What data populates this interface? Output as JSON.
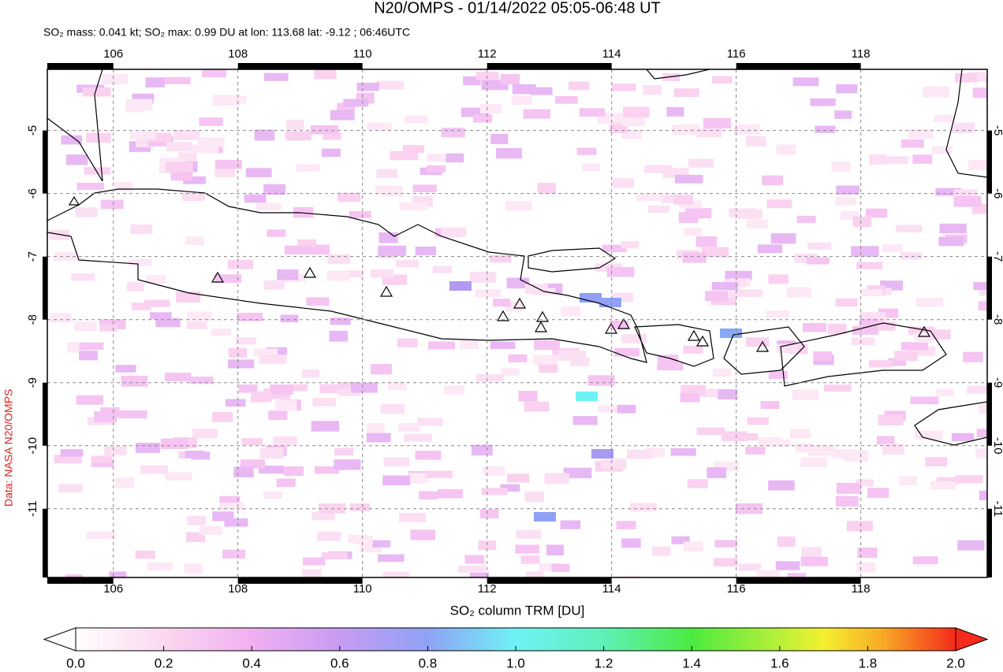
{
  "title": "N20/OMPS - 01/14/2022 05:05-06:48 UT",
  "subtitle": "SO₂ mass: 0.041 kt; SO₂ max: 0.99 DU at lon: 113.68 lat: -9.12 ; 06:46UTC",
  "credit": "Data: NASA N20/OMPS",
  "map": {
    "lonlim": [
      104.94,
      120.03
    ],
    "latlim": [
      -12.09,
      -4.03
    ],
    "lonticks": [
      106,
      108,
      110,
      112,
      114,
      116,
      118
    ],
    "latticks": [
      -5,
      -6,
      -7,
      -8,
      -9,
      -10,
      -11
    ]
  },
  "colorbar": {
    "label": "SO₂ column TRM [DU]",
    "lim": [
      0,
      2
    ],
    "ticks": [
      {
        "value": 0,
        "label": "0.0"
      },
      {
        "value": 0.2,
        "label": "0.2"
      },
      {
        "value": 0.4,
        "label": "0.4"
      },
      {
        "value": 0.6,
        "label": "0.6"
      },
      {
        "value": 0.8,
        "label": "0.8"
      },
      {
        "value": 1,
        "label": "1.0"
      },
      {
        "value": 1.2,
        "label": "1.2"
      },
      {
        "value": 1.4,
        "label": "1.4"
      },
      {
        "value": 1.6,
        "label": "1.6"
      },
      {
        "value": 1.8,
        "label": "1.8"
      },
      {
        "value": 2,
        "label": "2.0"
      }
    ]
  }
}
